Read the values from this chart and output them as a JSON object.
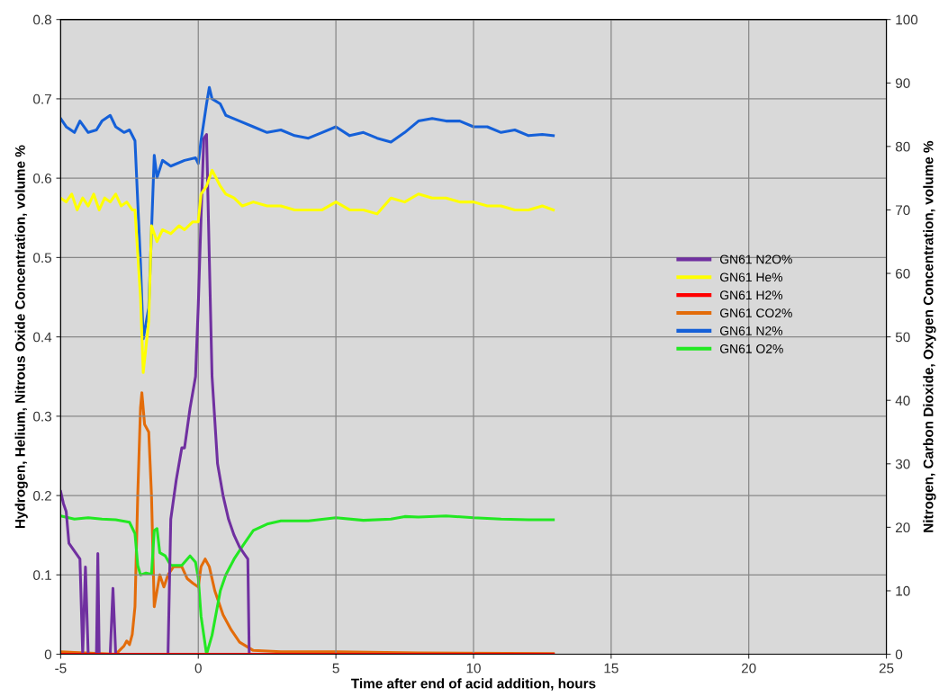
{
  "chart_data": {
    "type": "line",
    "xlabel": "Time after end of acid addition, hours",
    "ylabel": "Hydrogen, Helium, Nitrous Oxide Concentration, volume %",
    "y2label": "Nitrogen, Carbon Dioxide, Oxygen Concentration, volume %",
    "xlim": [
      -5,
      25
    ],
    "xticks": [
      -5,
      0,
      5,
      10,
      15,
      20,
      25
    ],
    "ylim": [
      0,
      0.8
    ],
    "yticks": [
      0,
      0.1,
      0.2,
      0.3,
      0.4,
      0.5,
      0.6,
      0.7,
      0.8
    ],
    "y2lim": [
      0,
      100
    ],
    "y2ticks": [
      0,
      10,
      20,
      30,
      40,
      50,
      60,
      70,
      80,
      90,
      100
    ],
    "grid": true,
    "legend": "right",
    "line_style": "solid",
    "marker": "none",
    "series": [
      {
        "name": "GN61 N2O%",
        "color": "#7030a0",
        "x": [
          -5,
          -4.9,
          -4.8,
          -4.7,
          -4.5,
          -4.3,
          -4.2,
          -4.1,
          -4.0,
          -3.7,
          -3.65,
          -3.6,
          -3.2,
          -3.1,
          -3.0,
          -1.1,
          -1.0,
          -0.8,
          -0.6,
          -0.5,
          -0.3,
          -0.1,
          0.0,
          0.1,
          0.2,
          0.3,
          0.4,
          0.5,
          0.7,
          0.9,
          1.1,
          1.3,
          1.5,
          1.7,
          1.8,
          1.85
        ],
        "values": [
          0.205,
          0.19,
          0.18,
          0.14,
          0.13,
          0.12,
          0,
          0.11,
          0,
          0,
          0.127,
          0,
          0,
          0.083,
          0,
          0,
          0.17,
          0.22,
          0.26,
          0.26,
          0.31,
          0.35,
          0.44,
          0.55,
          0.65,
          0.655,
          0.5,
          0.35,
          0.24,
          0.2,
          0.17,
          0.15,
          0.135,
          0.125,
          0.12,
          0
        ]
      },
      {
        "name": "GN61 He%",
        "color": "#ffff00",
        "x": [
          -5,
          -4.8,
          -4.6,
          -4.4,
          -4.2,
          -4.0,
          -3.8,
          -3.6,
          -3.4,
          -3.2,
          -3.0,
          -2.8,
          -2.6,
          -2.4,
          -2.3,
          -2.1,
          -2.0,
          -1.8,
          -1.7,
          -1.5,
          -1.3,
          -1.0,
          -0.7,
          -0.5,
          -0.2,
          0,
          0.1,
          0.3,
          0.5,
          0.8,
          1,
          1.3,
          1.6,
          2,
          2.5,
          3,
          3.5,
          4,
          4.5,
          5,
          5.5,
          6,
          6.5,
          7,
          7.5,
          8,
          8.5,
          9,
          9.5,
          10,
          10.5,
          11,
          11.5,
          12,
          12.5,
          12.9
        ],
        "values": [
          0.575,
          0.57,
          0.58,
          0.56,
          0.575,
          0.565,
          0.58,
          0.56,
          0.575,
          0.57,
          0.58,
          0.565,
          0.57,
          0.56,
          0.56,
          0.45,
          0.355,
          0.42,
          0.54,
          0.52,
          0.535,
          0.53,
          0.54,
          0.535,
          0.545,
          0.545,
          0.58,
          0.59,
          0.61,
          0.59,
          0.58,
          0.575,
          0.565,
          0.57,
          0.565,
          0.565,
          0.56,
          0.56,
          0.56,
          0.57,
          0.56,
          0.56,
          0.555,
          0.575,
          0.57,
          0.58,
          0.575,
          0.575,
          0.57,
          0.57,
          0.565,
          0.565,
          0.56,
          0.56,
          0.565,
          0.56
        ]
      },
      {
        "name": "GN61 H2%",
        "color": "#ff0000",
        "x": [
          -5,
          12.9
        ],
        "values": [
          0,
          0
        ]
      },
      {
        "name": "GN61 CO2%",
        "color": "#e36c0a",
        "axis": "y2",
        "x": [
          -5,
          -4.5,
          -3,
          -2.7,
          -2.6,
          -2.5,
          -2.4,
          -2.3,
          -2.2,
          -2.1,
          -2.05,
          -1.95,
          -1.8,
          -1.7,
          -1.6,
          -1.5,
          -1.4,
          -1.25,
          -1.1,
          -0.9,
          -0.6,
          -0.4,
          -0.2,
          0,
          0.1,
          0.25,
          0.4,
          0.6,
          0.9,
          1.2,
          1.5,
          2,
          3,
          5,
          8,
          12.9
        ],
        "values": [
          0.4,
          0.3,
          0,
          1.3,
          2.1,
          1.5,
          3.1,
          7.5,
          25,
          38.8,
          41.2,
          36.2,
          35,
          25,
          7.5,
          10,
          12.5,
          10.6,
          12.5,
          13.8,
          13.8,
          11.9,
          11.2,
          10.6,
          13.8,
          15,
          13.8,
          10,
          6.2,
          3.8,
          1.9,
          0.6,
          0.4,
          0.4,
          0.2,
          0.1
        ]
      },
      {
        "name": "GN61 N2%",
        "color": "#1560d8",
        "axis": "y2",
        "x": [
          -5,
          -4.8,
          -4.5,
          -4.3,
          -4,
          -3.7,
          -3.5,
          -3.2,
          -3,
          -2.7,
          -2.5,
          -2.3,
          -2.1,
          -2.0,
          -1.8,
          -1.6,
          -1.5,
          -1.3,
          -1.0,
          -0.5,
          -0.1,
          0,
          0.1,
          0.3,
          0.4,
          0.5,
          0.8,
          1,
          1.5,
          2,
          2.5,
          3,
          3.5,
          4,
          4.5,
          5,
          5.5,
          6,
          6.5,
          7,
          7.5,
          8,
          8.5,
          9,
          9.5,
          10,
          10.5,
          11,
          11.5,
          12,
          12.5,
          12.9
        ],
        "values": [
          84.4,
          83.1,
          82.2,
          84.0,
          82.2,
          82.6,
          84.0,
          84.9,
          83.1,
          82.2,
          82.6,
          80.9,
          61.7,
          49.7,
          54.6,
          78.6,
          75.1,
          77.8,
          76.9,
          77.8,
          78.2,
          77.3,
          80.9,
          86.7,
          89.3,
          87.5,
          86.7,
          84.9,
          84.0,
          83.1,
          82.2,
          82.6,
          81.7,
          81.3,
          82.2,
          83.1,
          81.7,
          82.2,
          81.3,
          80.7,
          82.2,
          84.0,
          84.4,
          84.0,
          84.0,
          83.1,
          83.1,
          82.2,
          82.6,
          81.7,
          81.9,
          81.7
        ]
      },
      {
        "name": "GN61 O2%",
        "color": "#22e822",
        "axis": "y2",
        "x": [
          -5,
          -4.5,
          -4,
          -3.5,
          -3,
          -2.5,
          -2.3,
          -2.2,
          -2.1,
          -1.9,
          -1.7,
          -1.6,
          -1.5,
          -1.4,
          -1.2,
          -1.0,
          -0.6,
          -0.3,
          -0.1,
          0.0,
          0.1,
          0.3,
          0.5,
          0.8,
          1.0,
          1.3,
          1.6,
          2,
          2.5,
          3,
          4,
          5,
          6,
          7,
          7.5,
          8,
          9,
          10,
          11,
          12,
          12.9
        ],
        "values": [
          21.8,
          21.3,
          21.5,
          21.3,
          21.2,
          20.8,
          19,
          14,
          12.5,
          12.8,
          12.6,
          19.5,
          19.8,
          16,
          15.5,
          14,
          14,
          15.5,
          14.5,
          12,
          6,
          0,
          3,
          10,
          12.5,
          15,
          17,
          19.5,
          20.5,
          21,
          21,
          21.5,
          21.1,
          21.3,
          21.7,
          21.6,
          21.8,
          21.5,
          21.3,
          21.2,
          21.2
        ]
      }
    ]
  }
}
